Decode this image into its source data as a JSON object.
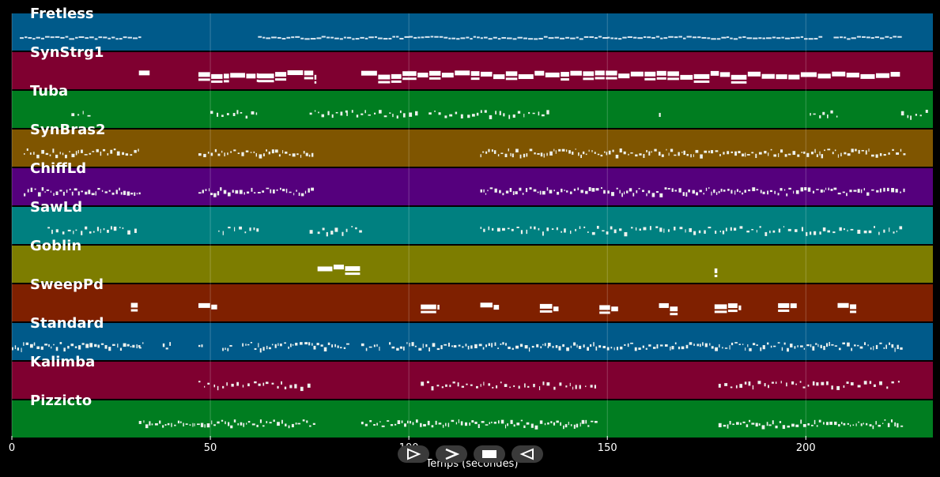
{
  "chart_data": {
    "type": "piano-roll",
    "xlabel": "Temps (secondes)",
    "xlim": [
      0,
      232
    ],
    "x_ticks": [
      0,
      50,
      100,
      150,
      200
    ],
    "tracks": [
      {
        "name": "Fretless",
        "color": "#005a8a",
        "style": "thin",
        "segments": [
          [
            2,
            32
          ],
          [
            62,
            77
          ],
          [
            78,
            100
          ],
          [
            100,
            120
          ],
          [
            120,
            150
          ],
          [
            150,
            180
          ],
          [
            180,
            204
          ],
          [
            207,
            224
          ]
        ]
      },
      {
        "name": "SynStrg1",
        "color": "#7f0030",
        "style": "block",
        "segments": [
          [
            32,
            35
          ],
          [
            47,
            55
          ],
          [
            55,
            62
          ],
          [
            62,
            77
          ],
          [
            88,
            224
          ]
        ]
      },
      {
        "name": "Tuba",
        "color": "#007d20",
        "style": "sparse",
        "segments": [
          [
            15,
            20
          ],
          [
            50,
            62
          ],
          [
            75,
            85
          ],
          [
            84,
            102
          ],
          [
            105,
            135
          ],
          [
            163,
            164
          ],
          [
            201,
            208
          ],
          [
            224,
            231
          ]
        ]
      },
      {
        "name": "SynBras2",
        "color": "#7f5500",
        "style": "dense",
        "segments": [
          [
            3,
            32
          ],
          [
            47,
            76
          ],
          [
            118,
            225
          ]
        ]
      },
      {
        "name": "ChiffLd",
        "color": "#55007d",
        "style": "dense",
        "segments": [
          [
            3,
            32
          ],
          [
            47,
            76
          ],
          [
            118,
            225
          ]
        ]
      },
      {
        "name": "SawLd",
        "color": "#008080",
        "style": "sparse",
        "segments": [
          [
            9,
            32
          ],
          [
            52,
            62
          ],
          [
            75,
            76
          ],
          [
            77,
            88
          ],
          [
            118,
            224
          ]
        ]
      },
      {
        "name": "Goblin",
        "color": "#7d7d00",
        "style": "block",
        "segments": [
          [
            77,
            88
          ],
          [
            177,
            178
          ]
        ]
      },
      {
        "name": "SweepPd",
        "color": "#7f2000",
        "style": "block",
        "segments": [
          [
            30,
            32
          ],
          [
            47,
            52
          ],
          [
            103,
            108
          ],
          [
            118,
            123
          ],
          [
            133,
            138
          ],
          [
            148,
            153
          ],
          [
            163,
            168
          ],
          [
            177,
            184
          ],
          [
            193,
            198
          ],
          [
            208,
            213
          ]
        ]
      },
      {
        "name": "Standard",
        "color": "#005a8a",
        "style": "dense",
        "segments": [
          [
            0,
            32
          ],
          [
            32,
            33
          ],
          [
            38,
            40
          ],
          [
            47,
            48
          ],
          [
            53,
            55
          ],
          [
            58,
            85
          ],
          [
            88,
            93
          ],
          [
            95,
            135
          ],
          [
            135,
            224
          ]
        ]
      },
      {
        "name": "Kalimba",
        "color": "#7f0030",
        "style": "sparse",
        "segments": [
          [
            47,
            76
          ],
          [
            103,
            148
          ],
          [
            178,
            224
          ]
        ]
      },
      {
        "name": "Pizzicto",
        "color": "#007d20",
        "style": "dense",
        "segments": [
          [
            32,
            76
          ],
          [
            88,
            148
          ],
          [
            178,
            224
          ]
        ]
      }
    ]
  },
  "controls": [
    {
      "name": "play-forward-button",
      "symbol": "play-outline"
    },
    {
      "name": "fast-forward-button",
      "symbol": "chevron"
    },
    {
      "name": "stop-button",
      "symbol": "square"
    },
    {
      "name": "play-reverse-button",
      "symbol": "reverse-outline"
    }
  ]
}
